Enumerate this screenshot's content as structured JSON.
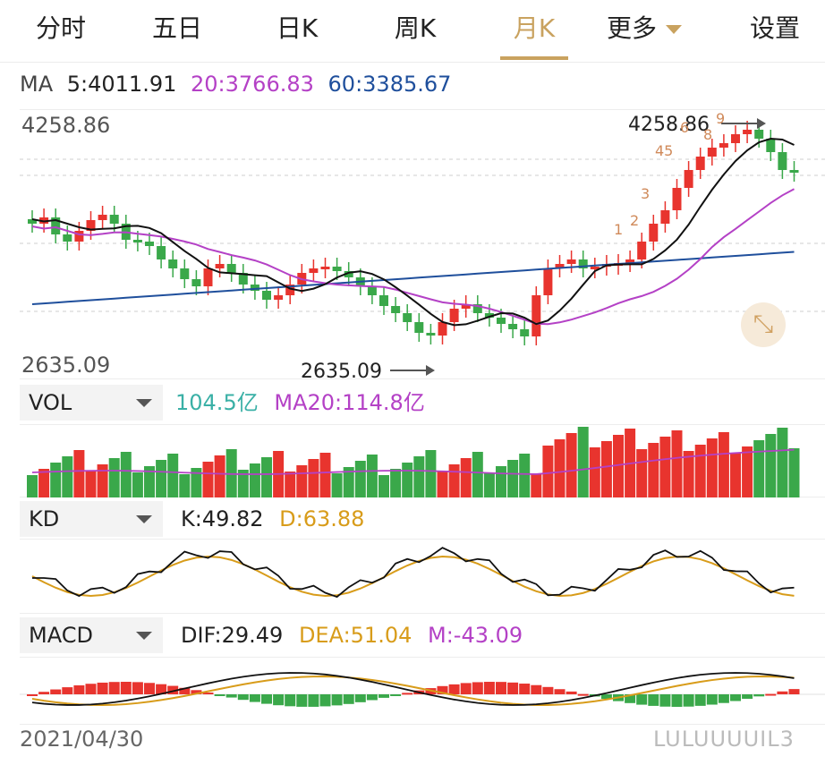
{
  "tabs": [
    {
      "label": "分时",
      "active": false
    },
    {
      "label": "五日",
      "active": false
    },
    {
      "label": "日K",
      "active": false
    },
    {
      "label": "周K",
      "active": false
    },
    {
      "label": "月K",
      "active": true
    },
    {
      "label": "更多",
      "active": false,
      "dropdown": true
    },
    {
      "label": "设置",
      "active": false
    }
  ],
  "ma": {
    "title": "MA",
    "ma5": "5:4011.91",
    "ma20": "20:3766.83",
    "ma60": "60:3385.67"
  },
  "colors": {
    "up": "#e8342e",
    "down": "#3aa84a",
    "ma5": "#111111",
    "ma20": "#b441c6",
    "ma60": "#1f4f9c",
    "accent": "#c9a25f",
    "dif": "#111111",
    "dea": "#d89c1a",
    "m": "#b441c6",
    "vol": "#3ab0a6"
  },
  "main_chart": {
    "high_label": "4258.86",
    "low_label": "2635.09",
    "high_annot": "4258.86",
    "low_annot": "2635.09",
    "markers": [
      "1",
      "2",
      "3",
      "45",
      "6",
      "8",
      "9"
    ],
    "expand_icon": "expand-arrows-icon"
  },
  "volume": {
    "selector": "VOL",
    "value": "104.5亿",
    "ma20": "MA20:114.8亿"
  },
  "kd": {
    "selector": "KD",
    "k": "K:49.82",
    "d": "D:63.88"
  },
  "macd": {
    "selector": "MACD",
    "dif": "DIF:29.49",
    "dea": "DEA:51.04",
    "m": "M:-43.09"
  },
  "footer": {
    "date": "2021/04/30",
    "watermark": "LULUUUUIL3"
  }
}
